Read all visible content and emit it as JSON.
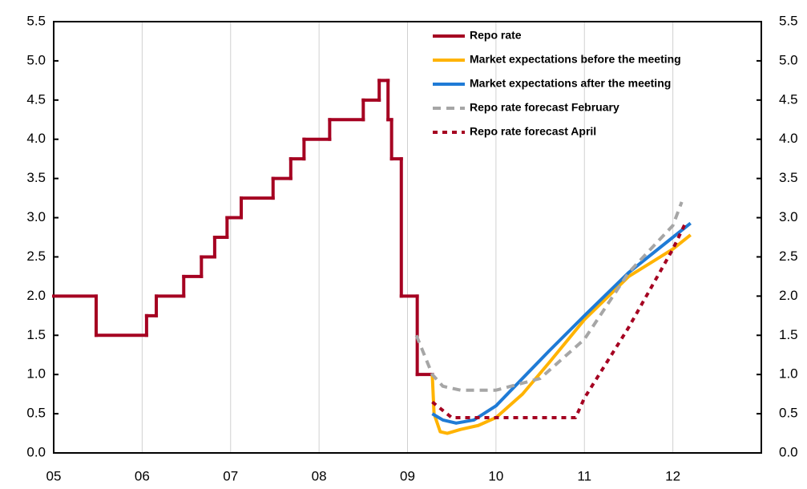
{
  "chart_data": {
    "type": "line",
    "xlim": [
      2005,
      2013
    ],
    "xticks": [
      {
        "value": 2005,
        "label": "05"
      },
      {
        "value": 2006,
        "label": "06"
      },
      {
        "value": 2007,
        "label": "07"
      },
      {
        "value": 2008,
        "label": "08"
      },
      {
        "value": 2009,
        "label": "09"
      },
      {
        "value": 2010,
        "label": "10"
      },
      {
        "value": 2011,
        "label": "11"
      },
      {
        "value": 2012,
        "label": "12"
      }
    ],
    "ylim": [
      0,
      5.5
    ],
    "yticks": [
      {
        "value": 0,
        "label": "0.0"
      },
      0.5,
      {
        "value": 1,
        "label": "1.0"
      },
      1.5,
      {
        "value": 2,
        "label": "2.0"
      },
      2.5,
      {
        "value": 3,
        "label": "3.0"
      },
      3.5,
      {
        "value": 4,
        "label": "4.0"
      },
      4.5,
      {
        "value": 5,
        "label": "5.0"
      },
      5.5
    ],
    "y2lim": [
      0,
      5.5
    ],
    "y2ticks": [
      {
        "value": 0,
        "label": "0.0"
      },
      0.5,
      {
        "value": 1,
        "label": "1.0"
      },
      1.5,
      {
        "value": 2,
        "label": "2.0"
      },
      2.5,
      {
        "value": 3,
        "label": "3.0"
      },
      3.5,
      {
        "value": 4,
        "label": "4.0"
      },
      4.5,
      {
        "value": 5,
        "label": "5.0"
      },
      5.5
    ],
    "grid": "x",
    "legend": "upper right",
    "series": [
      {
        "name": "Repo rate",
        "color": "#a50021",
        "style": "solid",
        "step": true,
        "x": [
          2005,
          2005.48,
          2006.05,
          2006.16,
          2006.47,
          2006.67,
          2006.82,
          2006.96,
          2007.12,
          2007.48,
          2007.68,
          2007.83,
          2008.12,
          2008.5,
          2008.68,
          2008.78,
          2008.82,
          2008.93,
          2009.11,
          2009.28
        ],
        "values": [
          2,
          1.5,
          1.75,
          2,
          2.25,
          2.5,
          2.75,
          3,
          3.25,
          3.5,
          3.75,
          4,
          4.25,
          4.5,
          4.75,
          4.25,
          3.75,
          2,
          1,
          1
        ]
      },
      {
        "name": "Market expectations before the meeting",
        "color": "#ffb300",
        "style": "solid",
        "step": false,
        "x": [
          2009.28,
          2009.3,
          2009.37,
          2009.45,
          2009.6,
          2009.8,
          2010.0,
          2010.3,
          2010.6,
          2011.0,
          2011.5,
          2012.0,
          2012.2
        ],
        "values": [
          1.0,
          0.5,
          0.27,
          0.25,
          0.3,
          0.35,
          0.45,
          0.75,
          1.15,
          1.7,
          2.25,
          2.6,
          2.78
        ]
      },
      {
        "name": "Market expectations after the meeting",
        "color": "#1f7bd6",
        "style": "solid",
        "step": false,
        "x": [
          2009.28,
          2009.4,
          2009.55,
          2009.75,
          2010.0,
          2010.3,
          2010.6,
          2011.0,
          2011.5,
          2012.0,
          2012.2
        ],
        "values": [
          0.5,
          0.42,
          0.38,
          0.42,
          0.6,
          0.95,
          1.3,
          1.75,
          2.3,
          2.75,
          2.93
        ]
      },
      {
        "name": "Repo rate forecast February",
        "color": "#a6a6a6",
        "style": "dashed",
        "step": false,
        "x": [
          2009.1,
          2009.28,
          2009.4,
          2009.6,
          2010.0,
          2010.5,
          2011.0,
          2011.5,
          2012.0,
          2012.1
        ],
        "values": [
          1.5,
          1.0,
          0.85,
          0.8,
          0.8,
          0.95,
          1.45,
          2.3,
          2.9,
          3.2
        ]
      },
      {
        "name": "Repo rate forecast April",
        "color": "#a50021",
        "style": "dotted",
        "step": false,
        "x": [
          2009.28,
          2009.5,
          2009.75,
          2010.0,
          2010.9,
          2011.0,
          2011.5,
          2012.0,
          2012.15
        ],
        "values": [
          0.65,
          0.45,
          0.45,
          0.45,
          0.45,
          0.7,
          1.6,
          2.6,
          2.95
        ]
      }
    ]
  }
}
